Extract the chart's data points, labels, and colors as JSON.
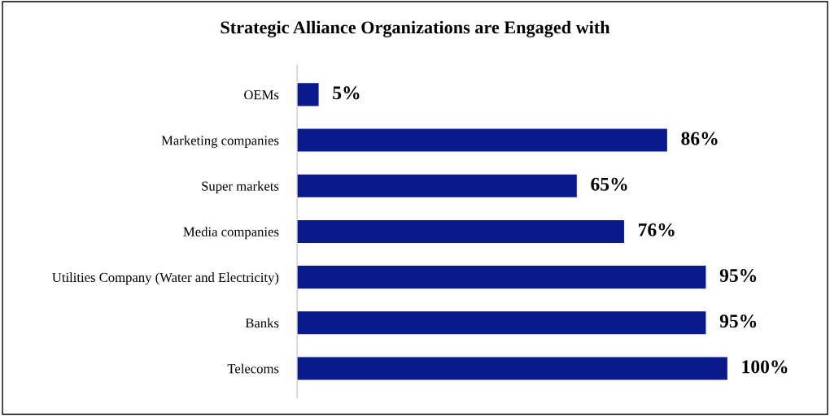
{
  "chart_data": {
    "type": "bar",
    "orientation": "horizontal",
    "title": "Strategic Alliance Organizations are Engaged with",
    "categories": [
      "OEMs",
      "Marketing companies",
      "Super markets",
      "Media companies",
      "Utilities Company (Water and Electricity)",
      "Banks",
      "Telecoms"
    ],
    "values": [
      5,
      86,
      65,
      76,
      95,
      95,
      100
    ],
    "value_labels": [
      "5%",
      "86%",
      "65%",
      "76%",
      "95%",
      "95%",
      "100%"
    ],
    "color": "#0a1a8c",
    "grid": false,
    "legend": false
  }
}
